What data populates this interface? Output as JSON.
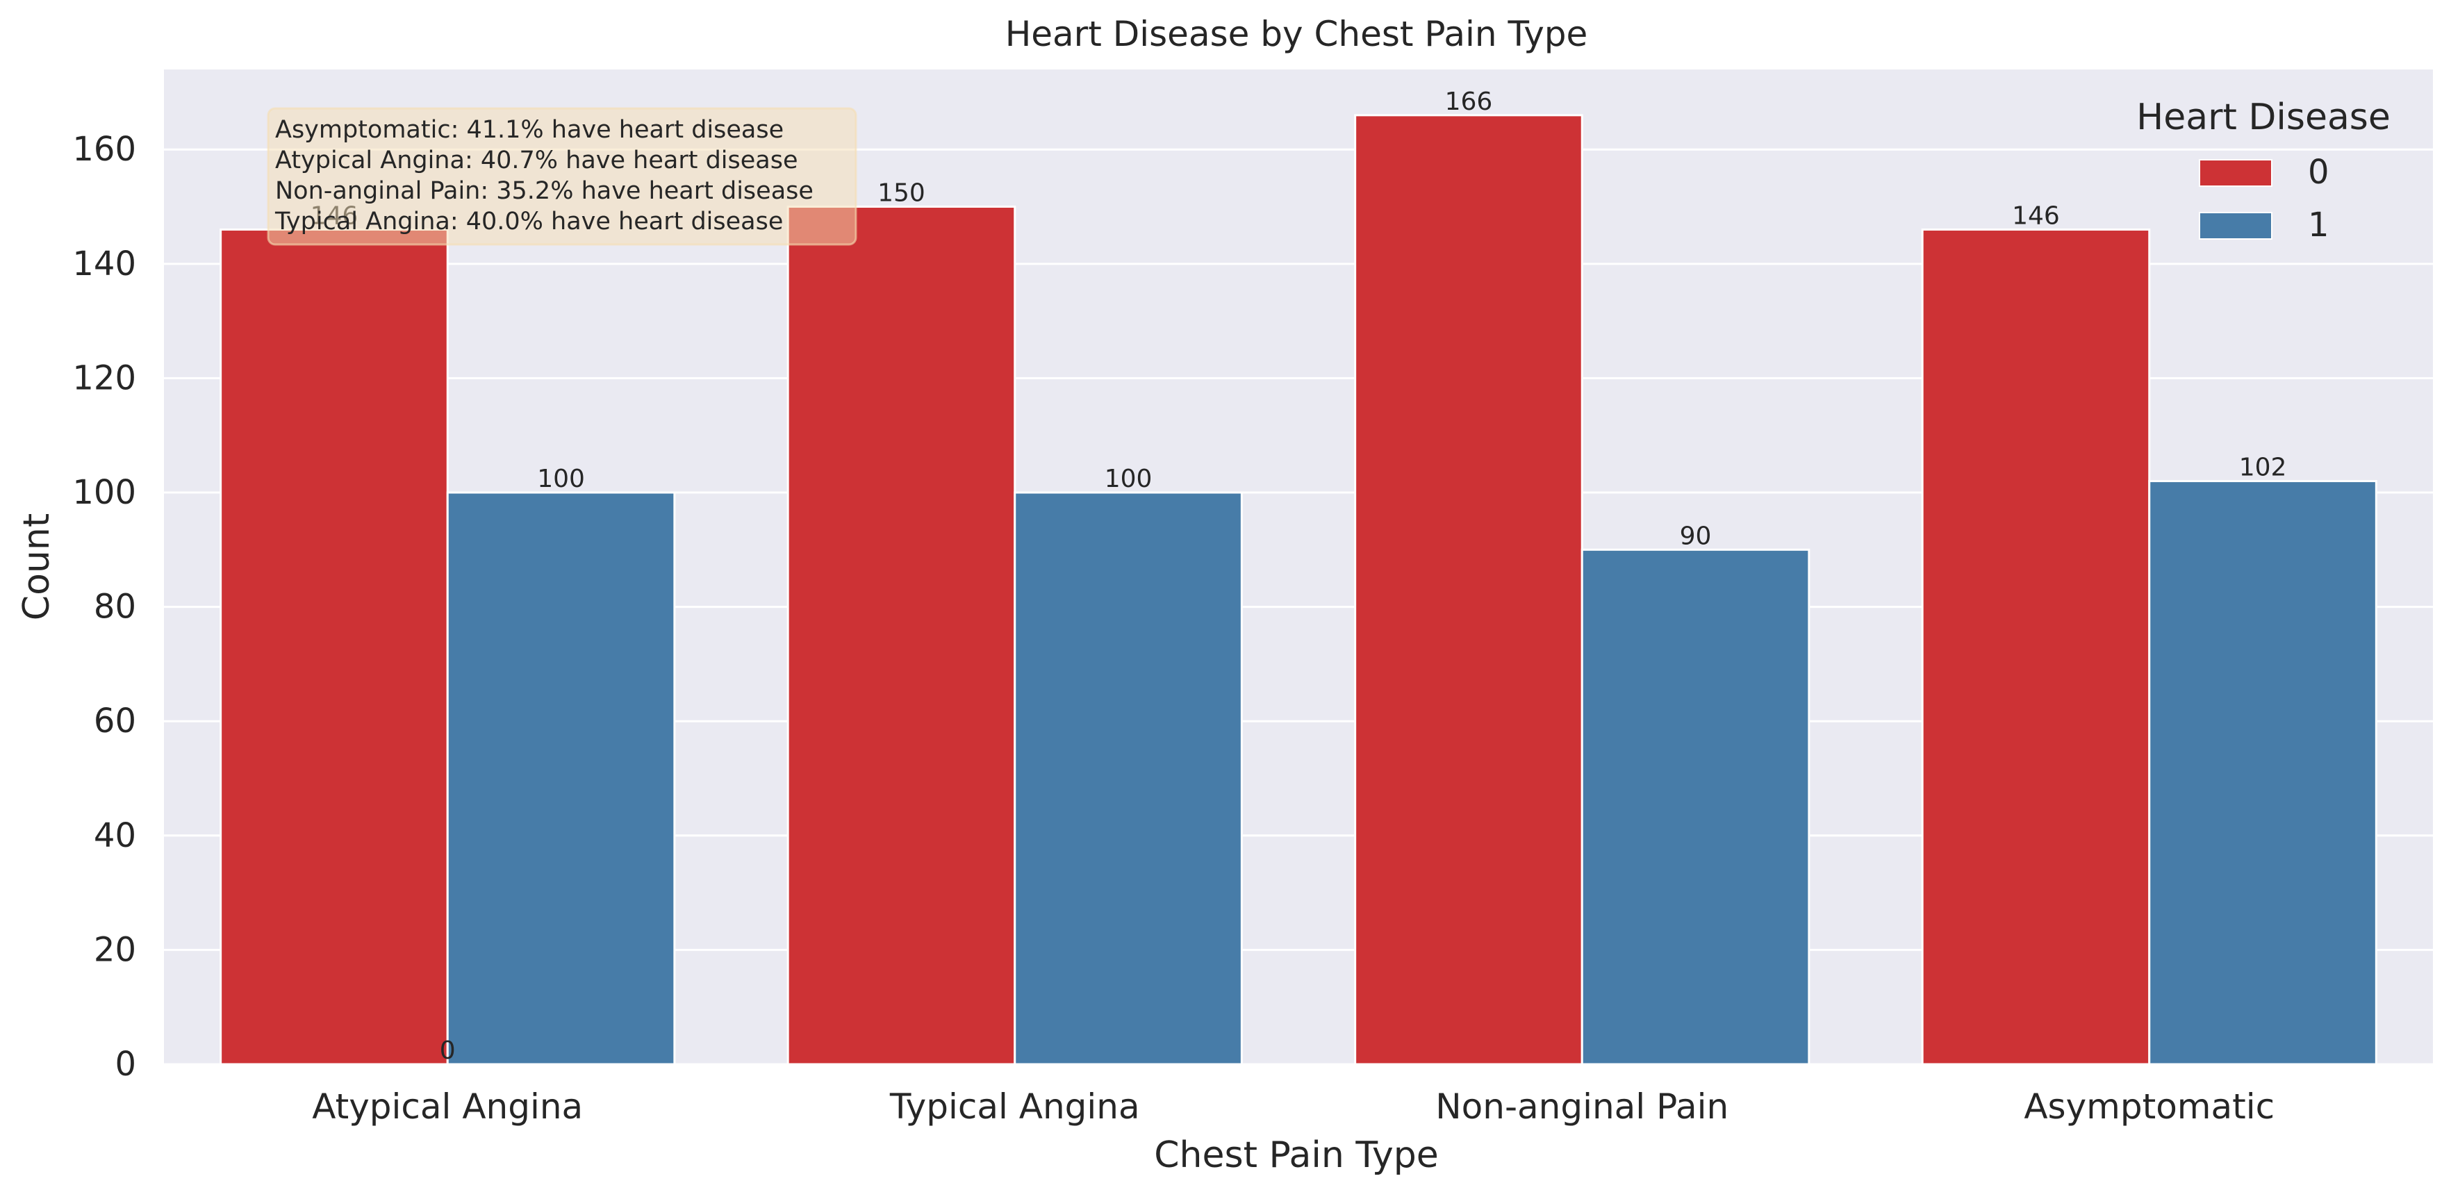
{
  "chart_data": {
    "type": "bar",
    "title": "Heart Disease by Chest Pain Type",
    "xlabel": "Chest Pain Type",
    "ylabel": "Count",
    "categories": [
      "Atypical Angina",
      "Typical Angina",
      "Non-anginal Pain",
      "Asymptomatic"
    ],
    "series": [
      {
        "name": "0",
        "values": [
          146,
          150,
          166,
          146
        ],
        "color": "#cd3235"
      },
      {
        "name": "1",
        "values": [
          100,
          100,
          90,
          102
        ],
        "color": "#477ca8"
      }
    ],
    "bar_labels": [
      [
        "146",
        "150",
        "166",
        "146"
      ],
      [
        "100",
        "100",
        "90",
        "102"
      ]
    ],
    "stray_label": "0",
    "ylim": [
      0,
      174
    ],
    "yticks": [
      0,
      20,
      40,
      60,
      80,
      100,
      120,
      140,
      160
    ],
    "grid": true,
    "legend": {
      "title": "Heart Disease",
      "placement": "top-right"
    },
    "annotation": {
      "lines": [
        "Asymptomatic: 41.1% have heart disease",
        "Atypical Angina: 40.7% have heart disease",
        "Non-anginal Pain: 35.2% have heart disease",
        "Typical Angina: 40.0% have heart disease"
      ],
      "placement": "top-left",
      "background": "#f5deb3"
    },
    "background": "#eaeaf2"
  }
}
